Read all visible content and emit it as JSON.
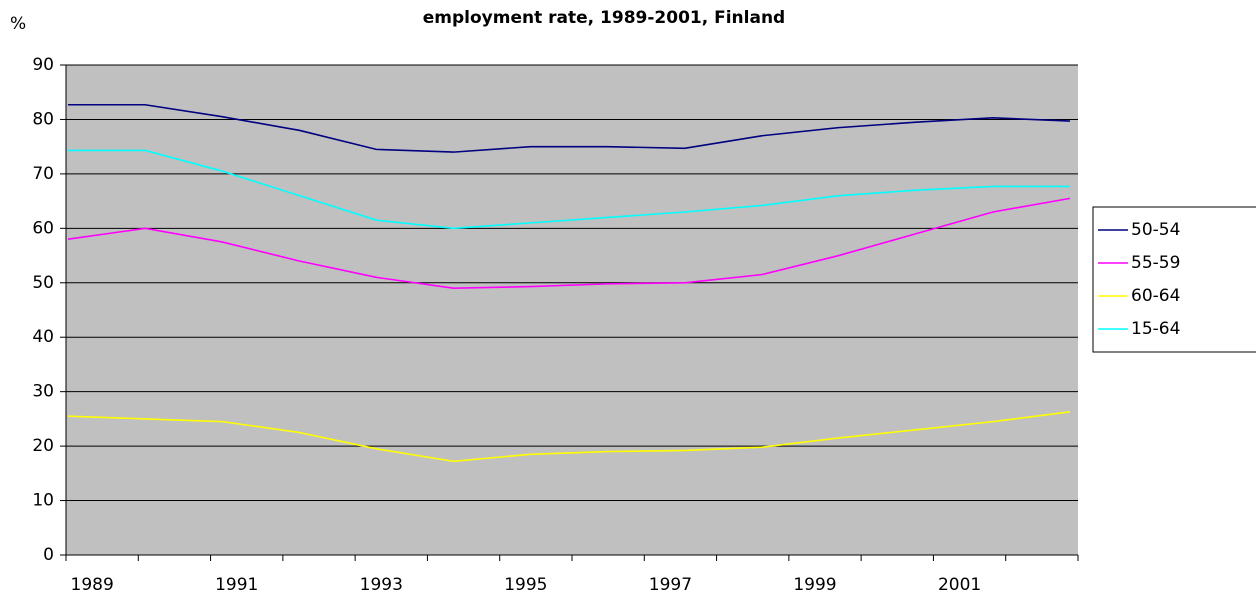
{
  "chart_data": {
    "type": "line",
    "title": "employment rate, 1989-2001, Finland",
    "y_label": "%",
    "categories": [
      "1989",
      null,
      "1991",
      null,
      "1993",
      null,
      "1995",
      null,
      "1997",
      null,
      "1999",
      null,
      "2001",
      null
    ],
    "series": [
      {
        "name": "50-54",
        "color": "#000080",
        "values": [
          82.7,
          82.7,
          80.5,
          78,
          74.5,
          74,
          75,
          75,
          74.7,
          77,
          78.5,
          79.5,
          80.3,
          79.7
        ]
      },
      {
        "name": "55-59",
        "color": "#ff00ff",
        "values": [
          58,
          60,
          57.5,
          54,
          51,
          49,
          49.3,
          49.8,
          50,
          51.5,
          55,
          59,
          63,
          65.5
        ]
      },
      {
        "name": "60-64",
        "color": "#ffff00",
        "values": [
          25.5,
          25,
          24.5,
          22.5,
          19.5,
          17.2,
          18.5,
          19,
          19.2,
          19.8,
          21.5,
          23,
          24.5,
          26.3
        ]
      },
      {
        "name": "15-64",
        "color": "#00ffff",
        "values": [
          74.3,
          74.3,
          70.5,
          66,
          61.5,
          60,
          61,
          62,
          63,
          64.2,
          66,
          67,
          67.7,
          67.7
        ]
      }
    ],
    "ylim": [
      0,
      90
    ],
    "yticks": [
      0,
      10,
      20,
      30,
      40,
      50,
      60,
      70,
      80,
      90
    ],
    "grid": true,
    "legend": "right"
  }
}
